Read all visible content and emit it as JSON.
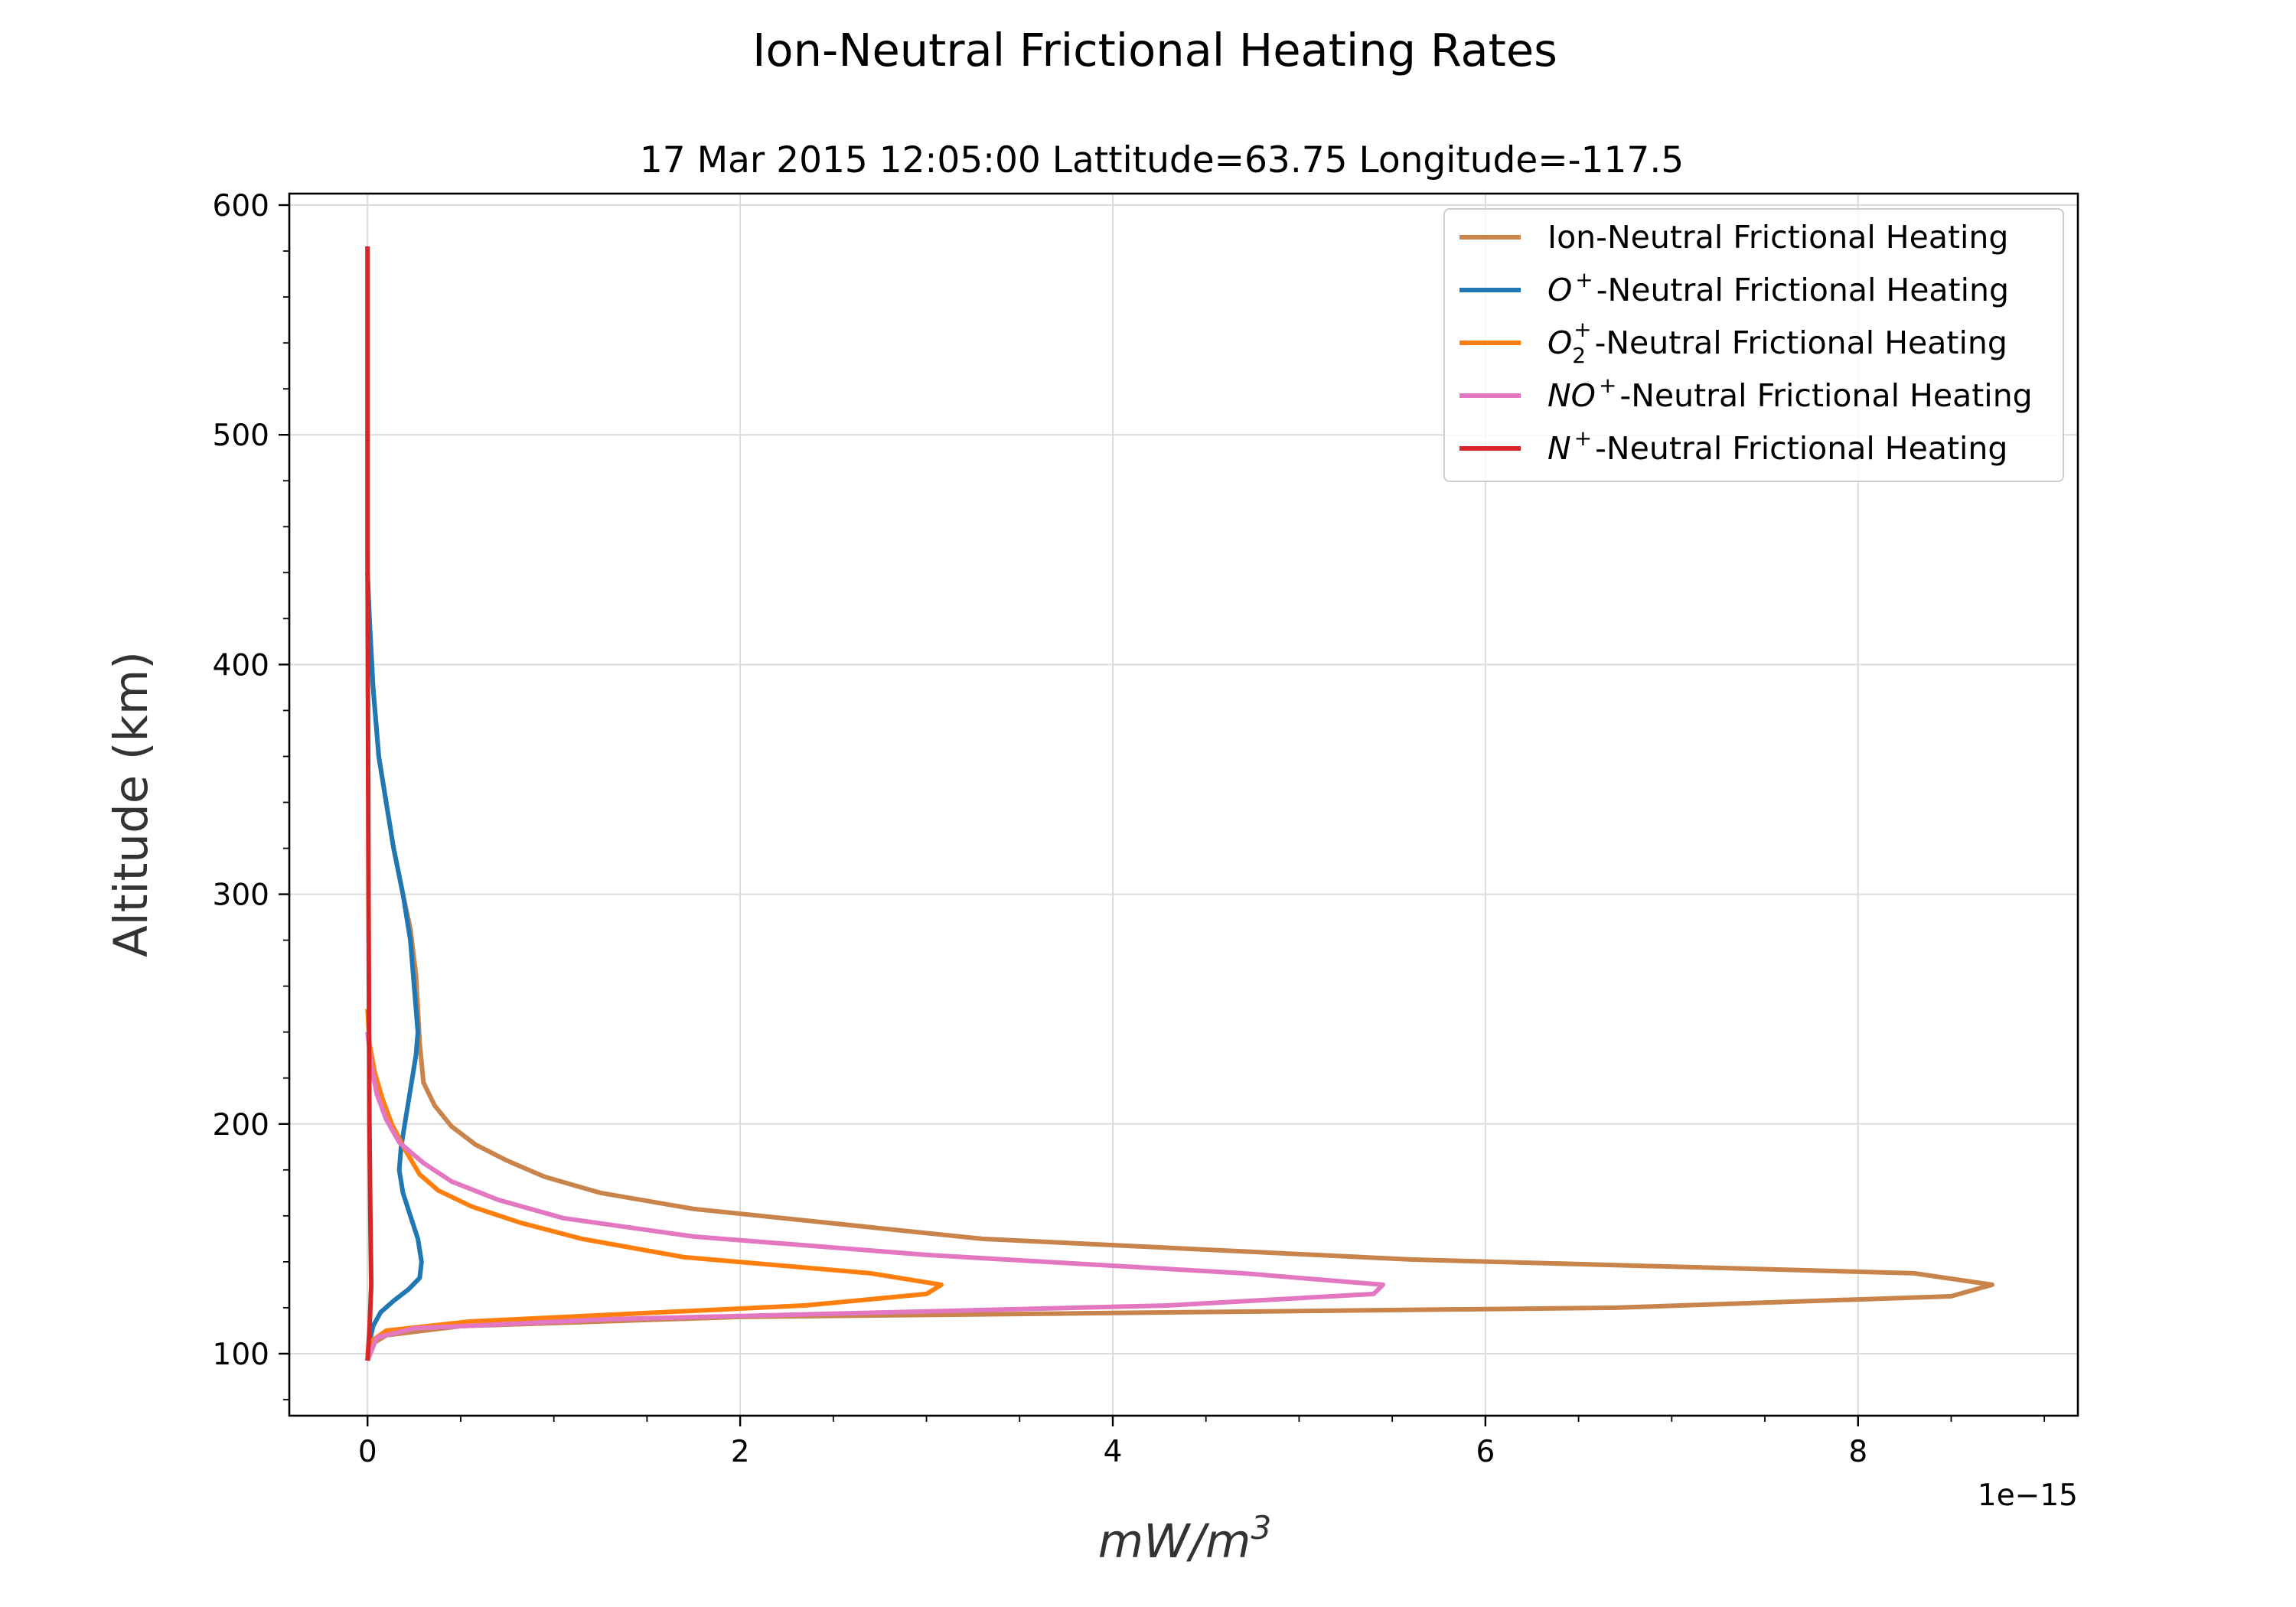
{
  "chart_data": {
    "type": "line",
    "title": "Ion-Neutral Frictional Heating Rates",
    "subtitle": "17 Mar 2015 12:05:00 Lattitude=63.75 Longitude=-117.5",
    "xlabel_base": "mW/m",
    "xlabel_sup": "3",
    "ylabel": "Altitude (km)",
    "x_offset_text": "1e−15",
    "xlim": [
      -0.42,
      9.18
    ],
    "ylim": [
      73,
      605
    ],
    "x_ticks": [
      0,
      2,
      4,
      6,
      8
    ],
    "x_tick_labels": [
      "0",
      "2",
      "4",
      "6",
      "8"
    ],
    "x_minor_ticks": [
      0.5,
      1,
      1.5,
      2.5,
      3,
      3.5,
      4.5,
      5,
      5.5,
      6.5,
      7,
      7.5,
      8.5,
      9
    ],
    "y_ticks": [
      100,
      200,
      300,
      400,
      500,
      600
    ],
    "y_tick_labels": [
      "100",
      "200",
      "300",
      "400",
      "500",
      "600"
    ],
    "y_minor_ticks": [
      80,
      120,
      140,
      160,
      180,
      220,
      240,
      260,
      280,
      320,
      340,
      360,
      380,
      420,
      440,
      460,
      480,
      520,
      540,
      560,
      580
    ],
    "grid": true,
    "legend_position": "top-right",
    "series": [
      {
        "name": "Ion-Neutral Frictional Heating",
        "name_parts": {
          "base": "Ion-Neutral Frictional Heating"
        },
        "color": "#c8844a",
        "x": [
          0,
          0.02,
          0.1,
          0.5,
          2.0,
          6.7,
          8.5,
          8.72,
          8.3,
          5.6,
          3.3,
          1.75,
          1.25,
          0.95,
          0.75,
          0.58,
          0.45,
          0.36,
          0.3,
          0.28,
          0.27,
          0.26,
          0.23,
          0.19,
          0.14,
          0.1,
          0.06,
          0.03,
          0.01,
          0
        ],
        "y": [
          97,
          104,
          108,
          112,
          116,
          120,
          125,
          130,
          135,
          141,
          150,
          163,
          170,
          177,
          184,
          191,
          199,
          208,
          218,
          235,
          250,
          265,
          285,
          300,
          320,
          340,
          360,
          390,
          420,
          440
        ]
      },
      {
        "name": "O⁺-Neutral Frictional Heating",
        "name_parts": {
          "base": "O",
          "sup": "+",
          "rest": "-Neutral Frictional Heating"
        },
        "color": "#1f77b4",
        "x": [
          0,
          0.01,
          0.03,
          0.07,
          0.14,
          0.22,
          0.28,
          0.29,
          0.27,
          0.23,
          0.19,
          0.17,
          0.18,
          0.2,
          0.22,
          0.24,
          0.26,
          0.27,
          0.25,
          0.23,
          0.19,
          0.14,
          0.1,
          0.06,
          0.03,
          0.01,
          0
        ],
        "y": [
          97,
          105,
          112,
          118,
          123,
          128,
          133,
          140,
          150,
          160,
          170,
          180,
          190,
          200,
          210,
          220,
          230,
          240,
          260,
          280,
          300,
          320,
          340,
          360,
          390,
          420,
          440
        ]
      },
      {
        "name": "O₂⁺-Neutral Frictional Heating",
        "name_parts": {
          "base": "O",
          "sub": "2",
          "sup": "+",
          "rest": "-Neutral Frictional Heating"
        },
        "color": "#ff7f0e",
        "x": [
          0,
          0.03,
          0.1,
          0.55,
          2.35,
          3.0,
          3.08,
          2.7,
          1.7,
          1.15,
          0.82,
          0.56,
          0.38,
          0.28,
          0.2,
          0.13,
          0.08,
          0.04,
          0.01,
          0
        ],
        "y": [
          97,
          106,
          110,
          114,
          121,
          126,
          130,
          135,
          142,
          150,
          157,
          164,
          171,
          178,
          189,
          200,
          211,
          222,
          235,
          250
        ]
      },
      {
        "name": "NO⁺-Neutral Frictional Heating",
        "name_parts": {
          "base": "NO",
          "sup": "+",
          "rest": "-Neutral Frictional Heating"
        },
        "color": "#e377c2",
        "x": [
          0,
          0.05,
          0.25,
          1.3,
          4.3,
          5.4,
          5.45,
          4.7,
          3.0,
          1.75,
          1.05,
          0.7,
          0.45,
          0.3,
          0.17,
          0.1,
          0.05,
          0.02,
          0
        ],
        "y": [
          97,
          107,
          111,
          115,
          121,
          126,
          130,
          135,
          143,
          151,
          159,
          167,
          175,
          183,
          192,
          202,
          213,
          225,
          240
        ]
      },
      {
        "name": "N⁺-Neutral Frictional Heating",
        "name_parts": {
          "base": "N",
          "sup": "+",
          "rest": "-Neutral Frictional Heating"
        },
        "color": "#d62728",
        "x": [
          0,
          0.01,
          0.02,
          0.015,
          0.01,
          0.005,
          0,
          0
        ],
        "y": [
          97,
          110,
          130,
          160,
          200,
          300,
          450,
          582
        ]
      }
    ]
  }
}
